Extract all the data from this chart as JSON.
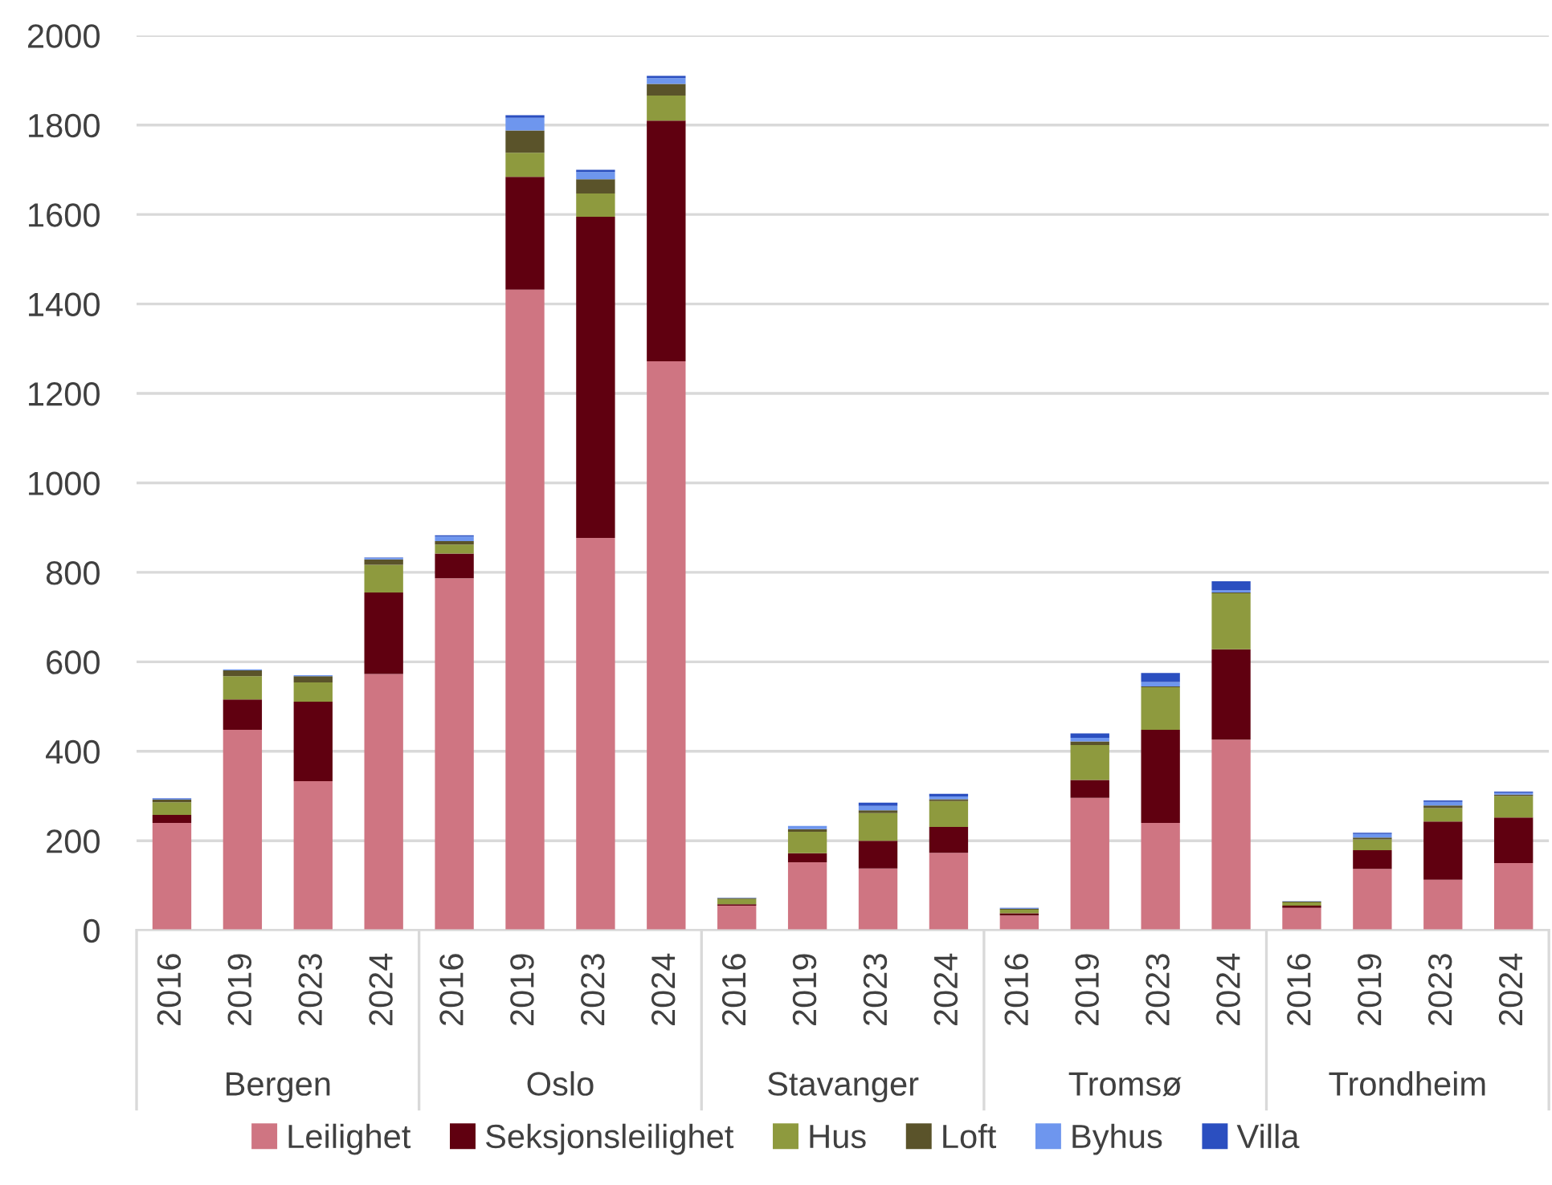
{
  "chart_data": {
    "type": "bar",
    "stacked": true,
    "categories": [
      "2016",
      "2019",
      "2023",
      "2024",
      "2016",
      "2019",
      "2023",
      "2024",
      "2016",
      "2019",
      "2023",
      "2024",
      "2016",
      "2019",
      "2023",
      "2024",
      "2016",
      "2019",
      "2023",
      "2024"
    ],
    "annotations": [
      "Bergen",
      "Oslo",
      "Stavanger",
      "Tromsø",
      "Trondheim"
    ],
    "series": [
      {
        "name": "Leilighet",
        "color": "#cf7582",
        "values": [
          240,
          448,
          333,
          573,
          787,
          1432,
          877,
          1272,
          55,
          152,
          138,
          173,
          33,
          296,
          240,
          426,
          50,
          137,
          113,
          150
        ]
      },
      {
        "name": "Seksjonsleilighet",
        "color": "#600010",
        "values": [
          18,
          68,
          178,
          182,
          55,
          252,
          718,
          538,
          3,
          20,
          62,
          58,
          5,
          40,
          208,
          202,
          5,
          42,
          130,
          102
        ]
      },
      {
        "name": "Hus",
        "color": "#8e9a3e",
        "values": [
          28,
          52,
          43,
          62,
          20,
          54,
          52,
          56,
          12,
          48,
          62,
          58,
          8,
          78,
          95,
          125,
          7,
          24,
          30,
          48
        ]
      },
      {
        "name": "Loft",
        "color": "#5a532a",
        "values": [
          6,
          13,
          14,
          12,
          8,
          50,
          32,
          26,
          2,
          6,
          6,
          4,
          2,
          8,
          2,
          2,
          2,
          4,
          6,
          3
        ]
      },
      {
        "name": "Byhus",
        "color": "#6e96ee",
        "values": [
          2,
          2,
          2,
          3,
          10,
          28,
          16,
          13,
          1,
          7,
          10,
          6,
          1,
          8,
          10,
          5,
          1,
          8,
          8,
          4
        ]
      },
      {
        "name": "Villa",
        "color": "#2b4fc0",
        "values": [
          1,
          0,
          0,
          1,
          3,
          6,
          5,
          5,
          0,
          0,
          7,
          6,
          1,
          10,
          20,
          20,
          0,
          3,
          3,
          3
        ]
      }
    ],
    "ylim": [
      0,
      2000
    ],
    "yticks": [
      0,
      200,
      400,
      600,
      800,
      1000,
      1200,
      1400,
      1600,
      1800,
      2000
    ],
    "grid": "y",
    "legend": "bottom"
  }
}
